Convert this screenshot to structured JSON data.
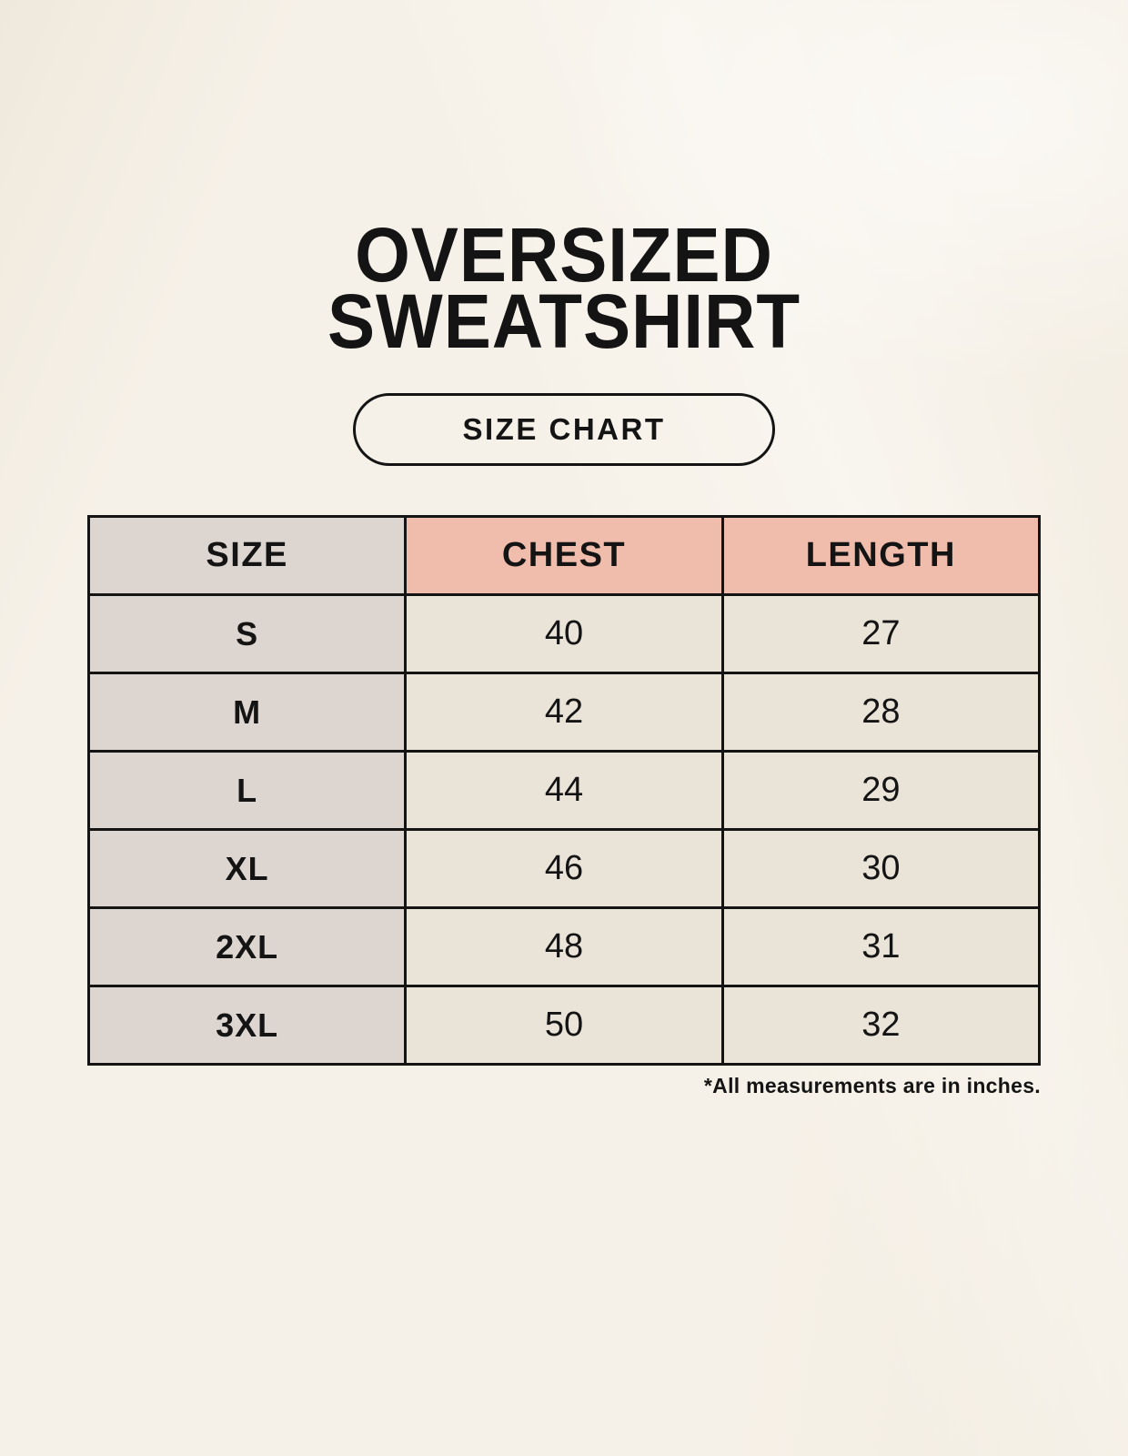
{
  "page": {
    "title_line1": "OVERSIZED",
    "title_line2": "SWEATSHIRT",
    "badge_label": "SIZE CHART"
  },
  "size_chart": {
    "columns": [
      "SIZE",
      "CHEST",
      "LENGTH"
    ],
    "rows": [
      {
        "size": "S",
        "chest": "40",
        "length": "27"
      },
      {
        "size": "M",
        "chest": "42",
        "length": "28"
      },
      {
        "size": "L",
        "chest": "44",
        "length": "29"
      },
      {
        "size": "XL",
        "chest": "46",
        "length": "30"
      },
      {
        "size": "2XL",
        "chest": "48",
        "length": "31"
      },
      {
        "size": "3XL",
        "chest": "50",
        "length": "32"
      }
    ],
    "footnote": "*All measurements are in inches."
  },
  "colors": {
    "background": "#f6f1e8",
    "size_header_bg": "#ddd6d0",
    "accent_header_bg": "#f0bcab",
    "size_column_bg": "#ddd6d0",
    "value_cell_bg": "#eae3d8",
    "table_border": "#141414",
    "text": "#141414"
  }
}
